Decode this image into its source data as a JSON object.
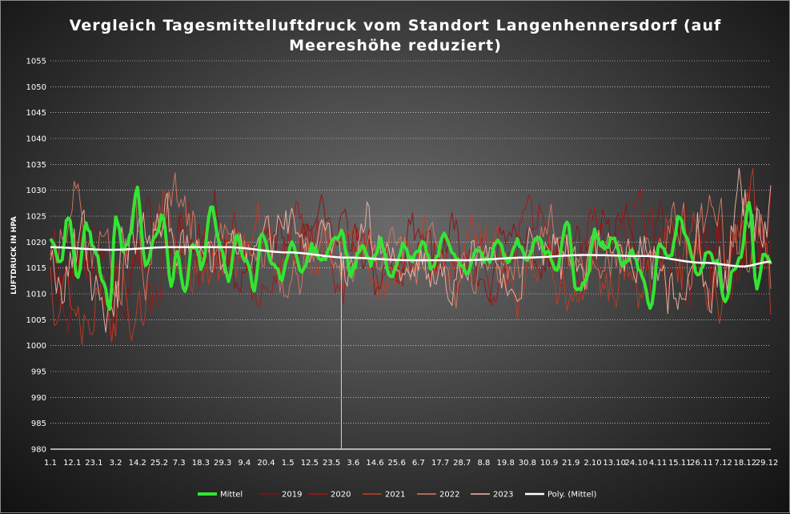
{
  "chart_data": {
    "type": "line",
    "title": "Vergleich Tagesmittelluftdruck vom Standort Langenhennersdorf (auf Meereshöhe reduziert)",
    "title_lines": [
      "Vergleich Tagesmittelluftdruck vom Standort Langenhennersdorf (auf",
      "Meereshöhe reduziert)"
    ],
    "ylabel": "LUFTDRUCK IN HPA",
    "xlabel": "",
    "ylim": [
      980,
      1055
    ],
    "yticks": [
      980,
      985,
      990,
      995,
      1000,
      1005,
      1010,
      1015,
      1020,
      1025,
      1030,
      1035,
      1040,
      1045,
      1050,
      1055
    ],
    "grid": true,
    "legend_position": "bottom",
    "days": 365,
    "x_tick_labels": [
      "1.1",
      "12.1",
      "23.1",
      "3.2",
      "14.2",
      "25.2",
      "7.3",
      "18.3",
      "29.3",
      "9.4",
      "20.4",
      "1.5",
      "12.5",
      "23.5",
      "3.6",
      "14.6",
      "25.6",
      "6.7",
      "17.7",
      "28.7",
      "8.8",
      "19.8",
      "30.8",
      "10.9",
      "21.9",
      "2.10",
      "13.10",
      "24.10",
      "4.11",
      "15.11",
      "26.11",
      "7.12",
      "18.12",
      "29.12"
    ],
    "x_tick_days": [
      0,
      11,
      22,
      33,
      44,
      55,
      65,
      76,
      87,
      98,
      109,
      120,
      131,
      142,
      153,
      164,
      175,
      186,
      197,
      208,
      219,
      230,
      241,
      252,
      263,
      274,
      285,
      296,
      307,
      318,
      329,
      340,
      351,
      362
    ],
    "series": [
      {
        "name": "Mittel",
        "color": "#33e533",
        "width": 4,
        "anchors": [
          [
            0,
            1021
          ],
          [
            5,
            1016
          ],
          [
            9,
            1025
          ],
          [
            14,
            1013
          ],
          [
            18,
            1023
          ],
          [
            23,
            1018
          ],
          [
            27,
            1012
          ],
          [
            30,
            1007
          ],
          [
            33,
            1025
          ],
          [
            37,
            1018
          ],
          [
            40,
            1021
          ],
          [
            44,
            1030
          ],
          [
            48,
            1015
          ],
          [
            52,
            1020
          ],
          [
            57,
            1025
          ],
          [
            61,
            1012
          ],
          [
            64,
            1018
          ],
          [
            68,
            1010
          ],
          [
            72,
            1020
          ],
          [
            77,
            1015
          ],
          [
            81,
            1027
          ],
          [
            86,
            1019
          ],
          [
            90,
            1013
          ],
          [
            94,
            1021
          ],
          [
            99,
            1016
          ],
          [
            103,
            1011
          ],
          [
            107,
            1022
          ],
          [
            112,
            1016
          ],
          [
            117,
            1013
          ],
          [
            122,
            1020
          ],
          [
            127,
            1014
          ],
          [
            132,
            1019
          ],
          [
            138,
            1017
          ],
          [
            143,
            1020
          ],
          [
            147,
            1022
          ],
          [
            152,
            1014
          ],
          [
            157,
            1019
          ],
          [
            162,
            1016
          ],
          [
            167,
            1020
          ],
          [
            172,
            1013
          ],
          [
            178,
            1019
          ],
          [
            183,
            1017
          ],
          [
            188,
            1020
          ],
          [
            193,
            1015
          ],
          [
            199,
            1021
          ],
          [
            205,
            1017
          ],
          [
            210,
            1014
          ],
          [
            215,
            1019
          ],
          [
            221,
            1016
          ],
          [
            226,
            1021
          ],
          [
            231,
            1016
          ],
          [
            236,
            1020
          ],
          [
            241,
            1017
          ],
          [
            246,
            1021
          ],
          [
            251,
            1018
          ],
          [
            256,
            1015
          ],
          [
            261,
            1024
          ],
          [
            266,
            1010
          ],
          [
            271,
            1013
          ],
          [
            275,
            1022
          ],
          [
            280,
            1019
          ],
          [
            285,
            1021
          ],
          [
            289,
            1016
          ],
          [
            294,
            1018
          ],
          [
            299,
            1014
          ],
          [
            303,
            1007
          ],
          [
            308,
            1020
          ],
          [
            313,
            1017
          ],
          [
            318,
            1025
          ],
          [
            322,
            1020
          ],
          [
            327,
            1013
          ],
          [
            332,
            1018
          ],
          [
            337,
            1016
          ],
          [
            341,
            1008
          ],
          [
            345,
            1015
          ],
          [
            349,
            1017
          ],
          [
            353,
            1028
          ],
          [
            357,
            1011
          ],
          [
            361,
            1018
          ],
          [
            364,
            1016
          ]
        ]
      },
      {
        "name": "2019",
        "color": "#8b1010",
        "width": 1,
        "seed": 11,
        "amp": 9,
        "base_shift": 0
      },
      {
        "name": "2020",
        "color": "#a81414",
        "width": 1,
        "seed": 23,
        "amp": 10,
        "base_shift": 1
      },
      {
        "name": "2021",
        "color": "#c83a22",
        "width": 1,
        "seed": 37,
        "amp": 10,
        "base_shift": -1
      },
      {
        "name": "2022",
        "color": "#e07860",
        "width": 1,
        "seed": 51,
        "amp": 9,
        "base_shift": 0
      },
      {
        "name": "2023",
        "color": "#f4b8a8",
        "width": 1,
        "seed": 67,
        "amp": 9,
        "base_shift": 1
      },
      {
        "name": "Poly. (Mittel)",
        "color": "#ffffff",
        "width": 2.5,
        "anchors": [
          [
            0,
            1019
          ],
          [
            30,
            1018.5
          ],
          [
            60,
            1019
          ],
          [
            90,
            1019
          ],
          [
            120,
            1018
          ],
          [
            150,
            1017
          ],
          [
            180,
            1016.5
          ],
          [
            210,
            1016.5
          ],
          [
            240,
            1017
          ],
          [
            270,
            1017.5
          ],
          [
            300,
            1017.3
          ],
          [
            330,
            1016
          ],
          [
            350,
            1015.3
          ],
          [
            364,
            1016.2
          ]
        ]
      }
    ],
    "annotations": [
      {
        "type": "vertical-line",
        "x_day": 147,
        "y_from": 980,
        "y_to": 1018,
        "color": "#ffc0c0"
      }
    ]
  }
}
